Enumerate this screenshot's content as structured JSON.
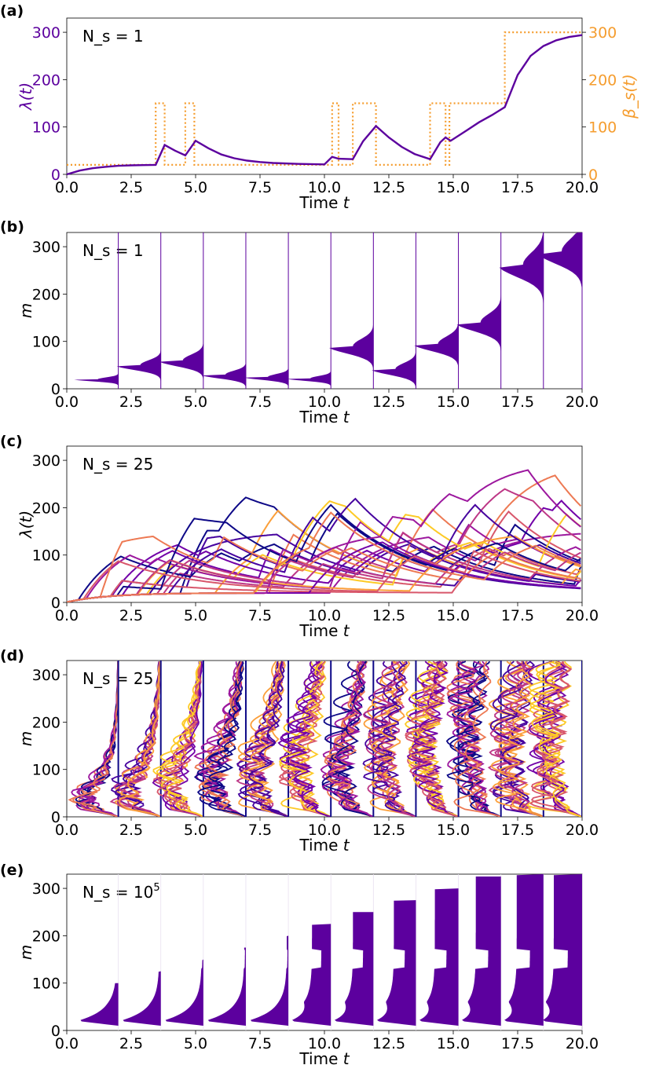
{
  "colors": {
    "lambda": "#5c009e",
    "beta": "#f59d2f",
    "palette": [
      "#0d0887",
      "#46039f",
      "#7201a8",
      "#9c179e",
      "#bd3786",
      "#d8576b",
      "#ed7953",
      "#fb9f3a",
      "#fdca26",
      "#f0f921"
    ]
  },
  "axis": {
    "time_label_prefix": "Time ",
    "time_label_var": "t",
    "x_ticks": [
      "0.0",
      "2.5",
      "5.0",
      "7.5",
      "10.0",
      "12.5",
      "15.0",
      "17.5",
      "20.0"
    ],
    "y_ticks": [
      "0",
      "100",
      "200",
      "300"
    ]
  },
  "chart_data": [
    {
      "panel": "(a)",
      "type": "line",
      "annotation": "N_s = 1",
      "ylabel": "λ(t)",
      "ylabel_right": "β_s(t)",
      "xlim": [
        0,
        20
      ],
      "ylim": [
        0,
        330
      ],
      "series": [
        {
          "name": "λ(t)",
          "x": [
            0,
            0.5,
            1,
            1.5,
            2,
            2.5,
            3,
            3.45,
            3.8,
            4.2,
            4.6,
            5.0,
            5.5,
            6,
            6.5,
            7,
            7.5,
            8,
            9,
            10,
            10.3,
            10.55,
            11.1,
            11.5,
            12.0,
            12.5,
            13,
            13.5,
            14.1,
            14.5,
            14.7,
            14.9,
            15.5,
            16,
            16.5,
            17.0,
            17.5,
            18,
            18.5,
            19,
            19.5,
            20
          ],
          "values": [
            0,
            8,
            13,
            16,
            18,
            19,
            19.5,
            20,
            62,
            50,
            40,
            71,
            55,
            42,
            34,
            29,
            26,
            24,
            22,
            21,
            37,
            33,
            32,
            70,
            102,
            78,
            58,
            43,
            32,
            68,
            78,
            71,
            92,
            110,
            125,
            142,
            210,
            250,
            271,
            283,
            290,
            294
          ]
        },
        {
          "name": "β_s(t)",
          "x": [
            0,
            3.45,
            3.45,
            3.8,
            3.8,
            4.6,
            4.6,
            4.95,
            4.95,
            10.3,
            10.3,
            10.55,
            10.55,
            11.1,
            11.1,
            12.0,
            12.0,
            14.1,
            14.1,
            14.7,
            14.7,
            14.85,
            14.85,
            15.0,
            15.0,
            17.0,
            17.0,
            20
          ],
          "values": [
            20,
            20,
            150,
            150,
            20,
            20,
            150,
            150,
            20,
            20,
            150,
            150,
            20,
            20,
            150,
            150,
            20,
            20,
            150,
            150,
            20,
            20,
            150,
            150,
            150,
            150,
            300,
            300
          ]
        }
      ]
    },
    {
      "panel": "(b)",
      "type": "area",
      "annotation": "N_s = 1",
      "ylabel": "m",
      "xlim": [
        0,
        20
      ],
      "ylim": [
        0,
        330
      ],
      "snapshot_times": [
        2.0,
        3.65,
        5.3,
        6.95,
        8.6,
        10.25,
        11.9,
        13.55,
        15.2,
        16.85,
        18.5,
        20.0
      ],
      "peak_m": [
        20,
        50,
        60,
        30,
        25,
        22,
        90,
        42,
        95,
        140,
        262,
        290
      ],
      "peak_width": [
        4,
        10,
        12,
        8,
        6,
        5,
        15,
        12,
        15,
        18,
        25,
        25
      ]
    },
    {
      "panel": "(c)",
      "type": "line",
      "annotation": "N_s = 25",
      "ylabel": "λ(t)",
      "xlim": [
        0,
        20
      ],
      "ylim": [
        0,
        330
      ],
      "n_series": 25
    },
    {
      "panel": "(d)",
      "type": "line",
      "annotation": "N_s = 25",
      "ylabel": "m",
      "xlim": [
        0,
        20
      ],
      "ylim": [
        0,
        330
      ],
      "snapshot_times": [
        2.0,
        3.65,
        5.3,
        6.95,
        8.6,
        10.25,
        11.9,
        13.55,
        15.2,
        16.85,
        18.5,
        20.0
      ]
    },
    {
      "panel": "(e)",
      "type": "area",
      "annotation": "N_s = 10",
      "annotation_sup": "5",
      "ylabel": "m",
      "xlim": [
        0,
        20
      ],
      "ylim": [
        0,
        330
      ],
      "snapshot_times": [
        2.0,
        3.65,
        5.3,
        6.95,
        8.6,
        10.25,
        11.9,
        13.55,
        15.2,
        16.85,
        18.5,
        20.0
      ]
    }
  ]
}
